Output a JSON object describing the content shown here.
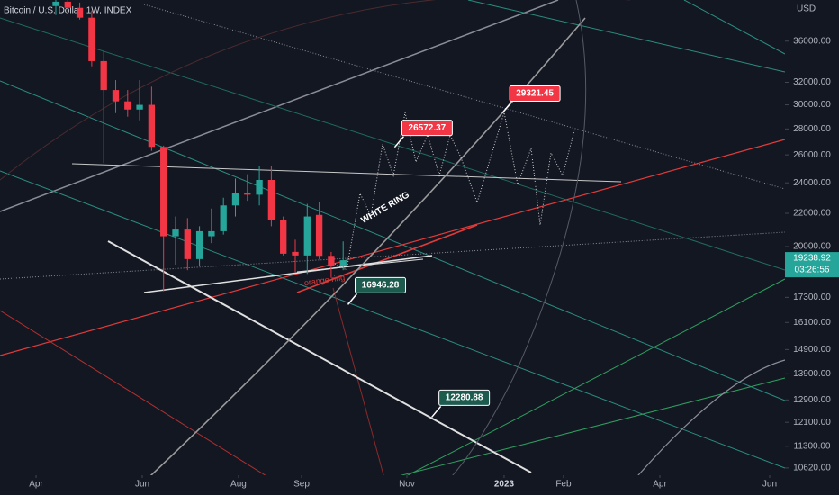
{
  "chart_data": {
    "type": "candlestick",
    "title": "Bitcoin / U.S. Dollar, 1W, INDEX",
    "currency": "USD",
    "up_color": "#26a69a",
    "down_color": "#f23645",
    "log_scale": true,
    "candles": [
      {
        "open": 39800,
        "high": 40500,
        "low": 38800,
        "close": 40300
      },
      {
        "open": 40300,
        "high": 40500,
        "low": 39200,
        "close": 39600
      },
      {
        "open": 39600,
        "high": 40200,
        "low": 38300,
        "close": 38500
      },
      {
        "open": 38500,
        "high": 39300,
        "low": 33500,
        "close": 34000
      },
      {
        "open": 34000,
        "high": 35000,
        "low": 25400,
        "close": 31300
      },
      {
        "open": 31300,
        "high": 32200,
        "low": 29300,
        "close": 30300
      },
      {
        "open": 30300,
        "high": 31300,
        "low": 29000,
        "close": 29600
      },
      {
        "open": 29600,
        "high": 32200,
        "low": 28700,
        "close": 30000
      },
      {
        "open": 30000,
        "high": 31600,
        "low": 26300,
        "close": 26600
      },
      {
        "open": 26600,
        "high": 26700,
        "low": 17600,
        "close": 20600
      },
      {
        "open": 20600,
        "high": 21800,
        "low": 19000,
        "close": 21000
      },
      {
        "open": 21000,
        "high": 21700,
        "low": 18700,
        "close": 19300
      },
      {
        "open": 19300,
        "high": 21200,
        "low": 18900,
        "close": 20900
      },
      {
        "open": 20600,
        "high": 22300,
        "low": 20200,
        "close": 20900
      },
      {
        "open": 20900,
        "high": 23000,
        "low": 20700,
        "close": 22500
      },
      {
        "open": 22500,
        "high": 24300,
        "low": 21800,
        "close": 23300
      },
      {
        "open": 23300,
        "high": 24600,
        "low": 22800,
        "close": 23200
      },
      {
        "open": 23200,
        "high": 25200,
        "low": 22500,
        "close": 24200
      },
      {
        "open": 24200,
        "high": 25200,
        "low": 21200,
        "close": 21600
      },
      {
        "open": 21600,
        "high": 21800,
        "low": 19500,
        "close": 19600
      },
      {
        "open": 19700,
        "high": 20400,
        "low": 18600,
        "close": 19500
      },
      {
        "open": 19500,
        "high": 22600,
        "low": 18500,
        "close": 21800
      },
      {
        "open": 21900,
        "high": 22700,
        "low": 19300,
        "close": 19480
      },
      {
        "open": 19480,
        "high": 19700,
        "low": 18300,
        "close": 18900
      },
      {
        "open": 18900,
        "high": 20300,
        "low": 18700,
        "close": 19238.92
      }
    ],
    "ylim": [
      10400,
      40500
    ],
    "yticks": [
      {
        "value": 36000,
        "label": "36000.00"
      },
      {
        "value": 32000,
        "label": "32000.00"
      },
      {
        "value": 30000,
        "label": "30000.00"
      },
      {
        "value": 28000,
        "label": "28000.00"
      },
      {
        "value": 26000,
        "label": "26000.00"
      },
      {
        "value": 24000,
        "label": "24000.00"
      },
      {
        "value": 22000,
        "label": "22000.00"
      },
      {
        "value": 20000,
        "label": "20000.00"
      },
      {
        "value": 17300,
        "label": "17300.00"
      },
      {
        "value": 16100,
        "label": "16100.00"
      },
      {
        "value": 14900,
        "label": "14900.00"
      },
      {
        "value": 13900,
        "label": "13900.00"
      },
      {
        "value": 12900,
        "label": "12900.00"
      },
      {
        "value": 12100,
        "label": "12100.00"
      },
      {
        "value": 11300,
        "label": "11300.00"
      },
      {
        "value": 10620,
        "label": "10620.00"
      }
    ],
    "xlim": [
      -4.66,
      60.9
    ],
    "xticks": [
      {
        "value": -1.65,
        "label": "Apr"
      },
      {
        "value": 7.22,
        "label": "Jun"
      },
      {
        "value": 15.26,
        "label": "Aug"
      },
      {
        "value": 20.53,
        "label": "Sep"
      },
      {
        "value": 29.32,
        "label": "Nov"
      },
      {
        "value": 37.44,
        "label": "2023"
      },
      {
        "value": 42.4,
        "label": "Feb"
      },
      {
        "value": 50.45,
        "label": "Apr"
      },
      {
        "value": 59.62,
        "label": "Jun"
      }
    ],
    "last_price": {
      "value": 19238.92,
      "label": "19238.92"
    },
    "countdown": "03:26:56",
    "annotations": [
      {
        "x": 37.3,
        "value": 29321.45,
        "color": "#f23645"
      },
      {
        "x": 28.3,
        "value": 26572.37,
        "color": "#f23645"
      },
      {
        "x": 24.4,
        "value": 16946.28,
        "color": "#1e5b4f"
      },
      {
        "x": 31.4,
        "value": 12280.88,
        "color": "#1e5b4f"
      }
    ],
    "notes": [
      "WHITE RING",
      "orange ring"
    ]
  }
}
